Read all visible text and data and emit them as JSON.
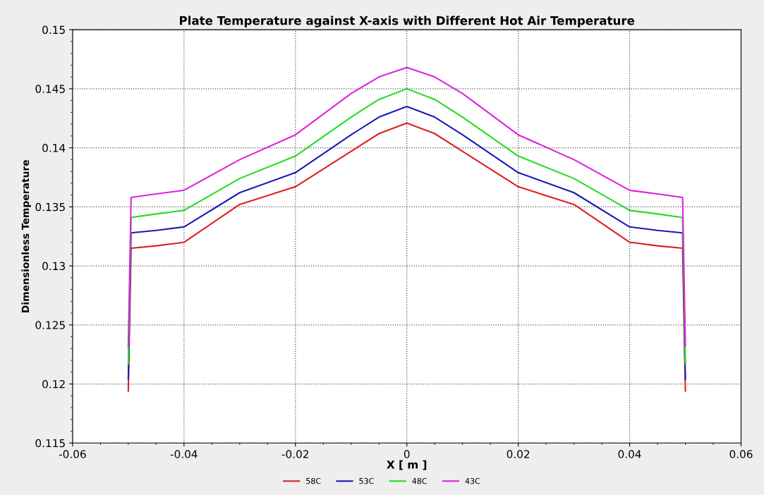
{
  "chart_data": {
    "type": "line",
    "title": "Plate Temperature against X-axis with Different Hot Air Temperature",
    "xlabel": "X [ m ]",
    "ylabel": "Dimensionless Temperature",
    "x": [
      -0.05,
      -0.0495,
      -0.045,
      -0.04,
      -0.03,
      -0.02,
      -0.01,
      -0.005,
      0,
      0.005,
      0.01,
      0.02,
      0.03,
      0.04,
      0.045,
      0.0495,
      0.05
    ],
    "series": [
      {
        "name": "58C",
        "color": "#dd2020",
        "values": [
          0.1194,
          0.1315,
          0.1317,
          0.132,
          0.1352,
          0.1367,
          0.1397,
          0.1412,
          0.1421,
          0.1412,
          0.1397,
          0.1367,
          0.1352,
          0.132,
          0.1317,
          0.1315,
          0.1194
        ]
      },
      {
        "name": "53C",
        "color": "#1a1ab8",
        "values": [
          0.1204,
          0.1328,
          0.133,
          0.1333,
          0.1362,
          0.1379,
          0.1411,
          0.1426,
          0.1435,
          0.1426,
          0.1411,
          0.1379,
          0.1362,
          0.1333,
          0.133,
          0.1328,
          0.1204
        ]
      },
      {
        "name": "48C",
        "color": "#22dd22",
        "values": [
          0.1217,
          0.1341,
          0.1344,
          0.1347,
          0.1374,
          0.1393,
          0.1426,
          0.1441,
          0.145,
          0.1441,
          0.1426,
          0.1393,
          0.1374,
          0.1347,
          0.1344,
          0.1341,
          0.1217
        ]
      },
      {
        "name": "43C",
        "color": "#dd22dd",
        "values": [
          0.1232,
          0.1358,
          0.1361,
          0.1364,
          0.139,
          0.1411,
          0.1446,
          0.146,
          0.1468,
          0.146,
          0.1446,
          0.1411,
          0.139,
          0.1364,
          0.1361,
          0.1358,
          0.1232
        ]
      }
    ],
    "xlim": [
      -0.06,
      0.06
    ],
    "xticks": [
      -0.06,
      -0.04,
      -0.02,
      0,
      0.02,
      0.04,
      0.06
    ],
    "ylim": [
      0.115,
      0.15
    ],
    "yticks": [
      0.115,
      0.12,
      0.125,
      0.13,
      0.135,
      0.14,
      0.145,
      0.15
    ],
    "grid": true,
    "legend": "bottom",
    "line_style": "solid",
    "marker": "none"
  }
}
